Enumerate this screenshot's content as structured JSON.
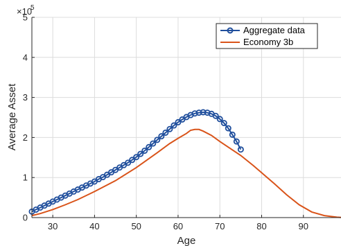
{
  "chart_data": {
    "type": "line",
    "xlabel": "Age",
    "ylabel": "Average Asset",
    "xlim": [
      25,
      99
    ],
    "ylim": [
      0,
      5
    ],
    "y_exponent": 5,
    "y_exponent_label": "×10",
    "y_exponent_value": "5",
    "x_ticks": [
      30,
      40,
      50,
      60,
      70,
      80,
      90
    ],
    "y_ticks": [
      0,
      1,
      2,
      3,
      4,
      5
    ],
    "x_tick_labels": [
      "30",
      "40",
      "50",
      "60",
      "70",
      "80",
      "90"
    ],
    "y_tick_labels": [
      "0",
      "1",
      "2",
      "3",
      "4",
      "5"
    ],
    "grid": true,
    "legend_position": "top-right",
    "series": [
      {
        "name": "Aggregate data",
        "color": "#1f4e9c",
        "marker": "circle",
        "x": [
          25,
          26,
          27,
          28,
          29,
          30,
          31,
          32,
          33,
          34,
          35,
          36,
          37,
          38,
          39,
          40,
          41,
          42,
          43,
          44,
          45,
          46,
          47,
          48,
          49,
          50,
          51,
          52,
          53,
          54,
          55,
          56,
          57,
          58,
          59,
          60,
          61,
          62,
          63,
          64,
          65,
          66,
          67,
          68,
          69,
          70,
          71,
          72,
          73,
          74,
          75
        ],
        "values": [
          0.15,
          0.2,
          0.25,
          0.3,
          0.35,
          0.4,
          0.45,
          0.5,
          0.55,
          0.6,
          0.65,
          0.7,
          0.75,
          0.8,
          0.85,
          0.9,
          0.96,
          1.01,
          1.07,
          1.13,
          1.19,
          1.25,
          1.31,
          1.37,
          1.44,
          1.51,
          1.59,
          1.67,
          1.76,
          1.85,
          1.94,
          2.03,
          2.12,
          2.21,
          2.3,
          2.38,
          2.45,
          2.51,
          2.56,
          2.6,
          2.62,
          2.63,
          2.62,
          2.59,
          2.54,
          2.46,
          2.36,
          2.23,
          2.07,
          1.9,
          1.7
        ]
      },
      {
        "name": "Economy 3b",
        "color": "#d95319",
        "marker": "none",
        "x": [
          25,
          27,
          30,
          33,
          36,
          40,
          45,
          50,
          55,
          58,
          60,
          62,
          63,
          64,
          65,
          66,
          68,
          70,
          72,
          75,
          78,
          80,
          83,
          86,
          89,
          92,
          95,
          98,
          99
        ],
        "values": [
          0.05,
          0.1,
          0.2,
          0.32,
          0.45,
          0.65,
          0.92,
          1.25,
          1.62,
          1.85,
          1.98,
          2.1,
          2.18,
          2.2,
          2.2,
          2.16,
          2.05,
          1.9,
          1.76,
          1.55,
          1.3,
          1.12,
          0.85,
          0.57,
          0.32,
          0.14,
          0.05,
          0.01,
          0.005
        ]
      }
    ]
  }
}
